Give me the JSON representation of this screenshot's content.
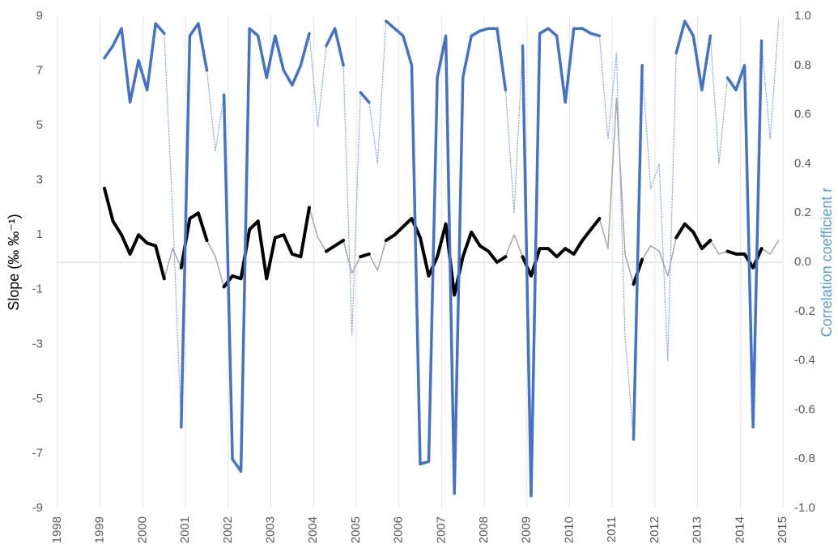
{
  "chart_data": {
    "type": "line",
    "y_label": "Slope (‰ ‰⁻¹)",
    "y2_label": "Correlation coefficient r",
    "y2_label_color": "#5b9bd5",
    "xlim": [
      1998,
      2015
    ],
    "xticks": [
      1998,
      1999,
      2000,
      2001,
      2002,
      2003,
      2004,
      2005,
      2006,
      2007,
      2008,
      2009,
      2010,
      2011,
      2012,
      2013,
      2014,
      2015
    ],
    "ylim": [
      -9,
      9
    ],
    "yticks": [
      -9,
      -7,
      -5,
      -3,
      -1,
      1,
      3,
      5,
      7,
      9
    ],
    "y2lim": [
      -1,
      1
    ],
    "y2ticks": [
      {
        "value": -1,
        "label": "-1.0"
      },
      -0.8,
      -0.6,
      -0.4,
      -0.2,
      {
        "value": 0,
        "label": "0.0"
      },
      0.2,
      0.4,
      0.6,
      0.8,
      {
        "value": 1,
        "label": "1.0"
      }
    ],
    "grid": true,
    "x": [
      1999.1,
      1999.3,
      1999.5,
      1999.7,
      1999.9,
      2000.1,
      2000.3,
      2000.5,
      2000.7,
      2000.9,
      2001.1,
      2001.3,
      2001.5,
      2001.7,
      2001.9,
      2002.1,
      2002.3,
      2002.5,
      2002.7,
      2002.9,
      2003.1,
      2003.3,
      2003.5,
      2003.7,
      2003.9,
      2004.1,
      2004.3,
      2004.5,
      2004.7,
      2004.9,
      2005.1,
      2005.3,
      2005.5,
      2005.7,
      2005.9,
      2006.1,
      2006.3,
      2006.5,
      2006.7,
      2006.9,
      2007.1,
      2007.3,
      2007.5,
      2007.7,
      2007.9,
      2008.1,
      2008.3,
      2008.5,
      2008.7,
      2008.9,
      2009.1,
      2009.3,
      2009.5,
      2009.7,
      2009.9,
      2010.1,
      2010.3,
      2010.5,
      2010.7,
      2010.9,
      2011.1,
      2011.3,
      2011.5,
      2011.7,
      2011.9,
      2012.1,
      2012.3,
      2012.5,
      2012.7,
      2012.9,
      2013.1,
      2013.3,
      2013.5,
      2013.7,
      2013.9,
      2014.1,
      2014.3,
      2014.5,
      2014.7,
      2014.9
    ],
    "series": [
      {
        "color": "#a6a6a6",
        "linestyle": "solid",
        "width": 1.5,
        "axis": "y",
        "values": [
          2.7,
          1.5,
          1.0,
          0.3,
          1.0,
          0.7,
          0.6,
          -0.6,
          0.5,
          -0.2,
          1.6,
          1.8,
          0.8,
          0.2,
          -0.9,
          -0.5,
          -0.6,
          1.2,
          1.5,
          -0.6,
          0.9,
          1.0,
          0.3,
          0.2,
          2.0,
          0.9,
          0.4,
          0.6,
          0.8,
          -0.4,
          0.2,
          0.3,
          -0.3,
          0.8,
          1.0,
          1.3,
          1.6,
          0.9,
          -0.5,
          0.2,
          1.4,
          -1.2,
          0.2,
          1.1,
          0.6,
          0.4,
          0.0,
          0.2,
          1.0,
          0.2,
          -0.5,
          0.5,
          0.5,
          0.2,
          0.5,
          0.3,
          0.8,
          1.2,
          1.6,
          0.5,
          6.0,
          0.3,
          -0.8,
          0.1,
          0.6,
          0.4,
          -0.5,
          0.9,
          1.4,
          1.1,
          0.5,
          0.8,
          0.3,
          0.4,
          0.3,
          0.3,
          -0.2,
          0.5,
          0.3,
          0.8
        ]
      },
      {
        "color": "#000000",
        "linestyle": "solid",
        "width": 4,
        "axis": "y",
        "values": [
          2.7,
          1.5,
          1.0,
          0.3,
          1.0,
          0.7,
          0.6,
          -0.6,
          null,
          -0.2,
          1.6,
          1.8,
          0.8,
          null,
          -0.9,
          -0.5,
          -0.6,
          1.2,
          1.5,
          -0.6,
          0.9,
          1.0,
          0.3,
          0.2,
          2.0,
          null,
          0.4,
          0.6,
          0.8,
          null,
          0.2,
          0.3,
          null,
          0.8,
          1.0,
          1.3,
          1.6,
          0.9,
          -0.5,
          0.2,
          1.4,
          -1.2,
          0.2,
          1.1,
          0.6,
          0.4,
          0.0,
          0.2,
          null,
          0.2,
          -0.5,
          0.5,
          0.5,
          0.2,
          0.5,
          0.3,
          0.8,
          1.2,
          1.6,
          null,
          6.0,
          null,
          -0.8,
          0.1,
          null,
          null,
          null,
          0.9,
          1.4,
          1.1,
          0.5,
          0.8,
          null,
          0.4,
          0.3,
          0.3,
          -0.2,
          0.5,
          null,
          0.8
        ]
      },
      {
        "color": "#8faadc",
        "linestyle": "dotted",
        "width": 1.2,
        "axis": "y2",
        "values": [
          0.83,
          0.88,
          0.95,
          0.65,
          0.82,
          0.7,
          0.97,
          0.93,
          0.2,
          -0.67,
          0.92,
          0.97,
          0.78,
          0.45,
          0.68,
          -0.8,
          -0.85,
          0.95,
          0.92,
          0.75,
          0.92,
          0.78,
          0.72,
          0.8,
          0.93,
          0.55,
          0.88,
          0.95,
          0.8,
          -0.3,
          0.69,
          0.65,
          0.4,
          0.98,
          0.95,
          0.92,
          0.8,
          -0.82,
          -0.81,
          0.75,
          0.92,
          -0.94,
          0.75,
          0.92,
          0.94,
          0.95,
          0.95,
          0.7,
          0.2,
          0.88,
          -0.95,
          0.93,
          0.95,
          0.92,
          0.65,
          0.95,
          0.95,
          0.93,
          0.92,
          0.5,
          0.85,
          -0.3,
          -0.72,
          0.8,
          0.3,
          0.4,
          -0.4,
          0.85,
          0.98,
          0.92,
          0.7,
          0.92,
          0.4,
          0.75,
          0.7,
          0.8,
          -0.67,
          0.9,
          0.5,
          0.98
        ]
      },
      {
        "color": "#4472c4",
        "linestyle": "solid",
        "width": 3.5,
        "axis": "y2",
        "values": [
          0.83,
          0.88,
          0.95,
          0.65,
          0.82,
          0.7,
          0.97,
          0.93,
          null,
          -0.67,
          0.92,
          0.97,
          0.78,
          null,
          0.68,
          -0.8,
          -0.85,
          0.95,
          0.92,
          0.75,
          0.92,
          0.78,
          0.72,
          0.8,
          0.93,
          null,
          0.88,
          0.95,
          0.8,
          null,
          0.69,
          0.65,
          null,
          0.98,
          0.95,
          0.92,
          0.8,
          -0.82,
          -0.81,
          0.75,
          0.92,
          -0.94,
          0.75,
          0.92,
          0.94,
          0.95,
          0.95,
          0.7,
          null,
          0.88,
          -0.95,
          0.93,
          0.95,
          0.92,
          0.65,
          0.95,
          0.95,
          0.93,
          0.92,
          null,
          0.85,
          null,
          -0.72,
          0.8,
          null,
          null,
          null,
          0.85,
          0.98,
          0.92,
          0.7,
          0.92,
          null,
          0.75,
          0.7,
          0.8,
          -0.67,
          0.9,
          null,
          0.98
        ]
      }
    ]
  }
}
